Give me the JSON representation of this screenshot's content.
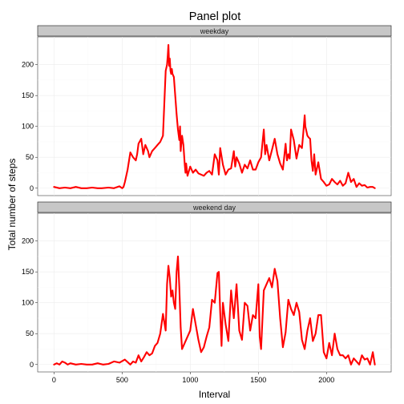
{
  "chart_data": {
    "type": "line",
    "title": "Panel plot",
    "xlabel": "Interval",
    "ylabel": "Total number of steps",
    "xlim": [
      -120,
      2475
    ],
    "ylim": [
      -12,
      245
    ],
    "x_ticks": [
      0,
      500,
      1000,
      1500,
      2000
    ],
    "y_ticks": [
      0,
      50,
      100,
      150,
      200
    ],
    "grid": true,
    "legend": "none",
    "colors": {
      "line": "#ff0000",
      "strip": "#c7c7c7"
    },
    "panels": [
      {
        "label": "weekday",
        "x": [
          0,
          40,
          80,
          120,
          160,
          200,
          240,
          280,
          320,
          350,
          400,
          440,
          480,
          500,
          510,
          520,
          540,
          560,
          580,
          600,
          610,
          620,
          640,
          655,
          670,
          690,
          700,
          720,
          740,
          760,
          780,
          800,
          820,
          830,
          835,
          840,
          845,
          850,
          855,
          860,
          865,
          870,
          880,
          890,
          900,
          910,
          920,
          925,
          930,
          940,
          950,
          960,
          965,
          970,
          980,
          1000,
          1020,
          1040,
          1060,
          1080,
          1100,
          1120,
          1140,
          1160,
          1180,
          1200,
          1210,
          1220,
          1240,
          1260,
          1280,
          1300,
          1320,
          1330,
          1340,
          1360,
          1380,
          1400,
          1420,
          1440,
          1460,
          1480,
          1500,
          1520,
          1540,
          1550,
          1560,
          1580,
          1600,
          1620,
          1640,
          1660,
          1680,
          1700,
          1710,
          1720,
          1730,
          1740,
          1760,
          1780,
          1800,
          1820,
          1830,
          1840,
          1845,
          1850,
          1860,
          1870,
          1880,
          1890,
          1900,
          1910,
          1920,
          1940,
          1960,
          1980,
          2000,
          2020,
          2040,
          2060,
          2080,
          2100,
          2120,
          2140,
          2160,
          2180,
          2200,
          2220,
          2240,
          2260,
          2280,
          2300,
          2320,
          2340,
          2355
        ],
        "y": [
          2,
          0,
          1,
          0,
          2,
          0,
          0,
          1,
          0,
          0,
          1,
          0,
          3,
          0,
          2,
          10,
          30,
          58,
          50,
          45,
          55,
          72,
          80,
          55,
          70,
          60,
          50,
          60,
          65,
          70,
          75,
          85,
          190,
          200,
          215,
          232,
          198,
          210,
          190,
          185,
          193,
          185,
          180,
          150,
          120,
          95,
          78,
          100,
          60,
          85,
          70,
          38,
          25,
          40,
          20,
          35,
          25,
          30,
          24,
          22,
          20,
          25,
          28,
          22,
          55,
          45,
          22,
          65,
          38,
          22,
          30,
          32,
          60,
          35,
          50,
          40,
          25,
          38,
          32,
          45,
          30,
          30,
          42,
          50,
          95,
          55,
          70,
          45,
          62,
          80,
          55,
          40,
          30,
          72,
          45,
          55,
          48,
          95,
          78,
          48,
          70,
          65,
          90,
          118,
          100,
          95,
          85,
          82,
          80,
          45,
          28,
          55,
          22,
          42,
          15,
          10,
          4,
          6,
          15,
          10,
          6,
          12,
          4,
          8,
          25,
          10,
          15,
          2,
          8,
          4,
          5,
          1,
          2,
          2,
          0
        ]
      },
      {
        "label": "weekend day",
        "x": [
          0,
          20,
          40,
          60,
          80,
          100,
          120,
          160,
          200,
          240,
          280,
          320,
          360,
          400,
          440,
          480,
          520,
          560,
          580,
          600,
          620,
          640,
          660,
          680,
          700,
          720,
          740,
          760,
          780,
          800,
          820,
          830,
          840,
          850,
          860,
          870,
          880,
          890,
          900,
          910,
          920,
          930,
          940,
          960,
          980,
          1000,
          1020,
          1040,
          1060,
          1080,
          1100,
          1120,
          1140,
          1160,
          1180,
          1200,
          1210,
          1220,
          1230,
          1240,
          1260,
          1280,
          1300,
          1320,
          1340,
          1360,
          1380,
          1400,
          1420,
          1440,
          1460,
          1480,
          1500,
          1510,
          1520,
          1540,
          1560,
          1580,
          1600,
          1620,
          1640,
          1660,
          1680,
          1700,
          1720,
          1740,
          1760,
          1780,
          1800,
          1820,
          1840,
          1860,
          1880,
          1900,
          1920,
          1940,
          1960,
          1980,
          2000,
          2020,
          2040,
          2060,
          2080,
          2100,
          2120,
          2140,
          2160,
          2180,
          2200,
          2220,
          2240,
          2260,
          2280,
          2300,
          2320,
          2340,
          2355
        ],
        "y": [
          0,
          2,
          0,
          5,
          3,
          0,
          2,
          0,
          1,
          0,
          0,
          2,
          0,
          1,
          5,
          3,
          8,
          0,
          5,
          3,
          15,
          5,
          12,
          20,
          15,
          18,
          30,
          35,
          50,
          82,
          55,
          130,
          160,
          140,
          110,
          120,
          100,
          90,
          150,
          175,
          125,
          60,
          25,
          35,
          45,
          55,
          90,
          65,
          40,
          20,
          28,
          45,
          60,
          105,
          100,
          148,
          150,
          85,
          30,
          100,
          65,
          38,
          120,
          75,
          130,
          55,
          40,
          100,
          95,
          55,
          80,
          75,
          130,
          45,
          25,
          120,
          130,
          140,
          125,
          155,
          135,
          75,
          28,
          52,
          105,
          90,
          80,
          100,
          85,
          40,
          25,
          55,
          75,
          38,
          50,
          80,
          80,
          20,
          10,
          35,
          15,
          50,
          25,
          15,
          15,
          10,
          15,
          0,
          10,
          5,
          0,
          15,
          8,
          10,
          0,
          20,
          0
        ]
      }
    ]
  }
}
